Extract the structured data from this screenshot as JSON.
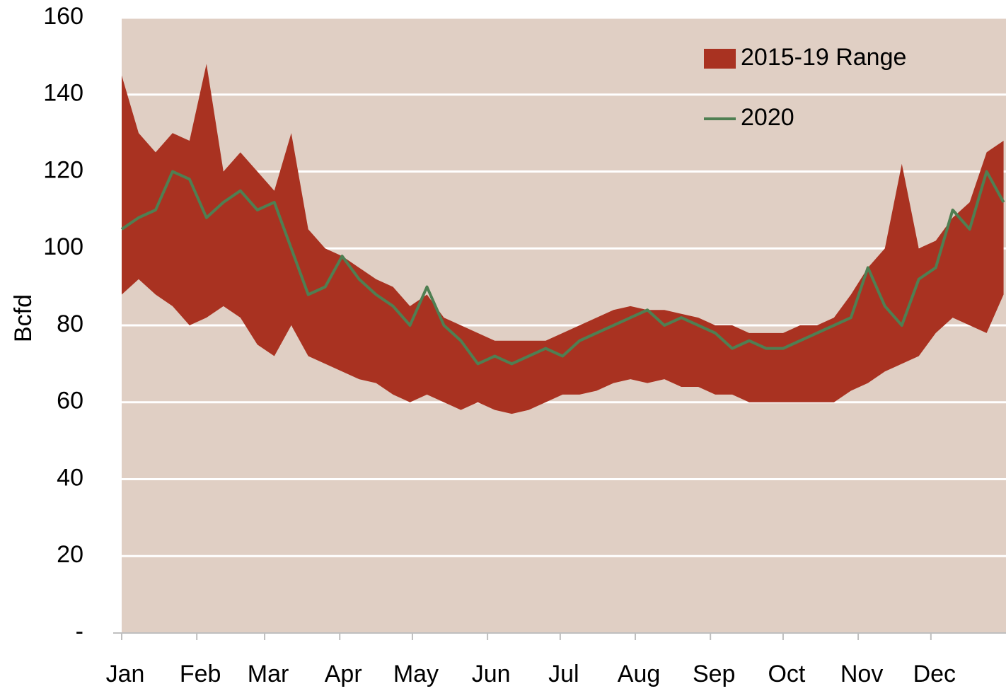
{
  "chart_data": {
    "type": "line",
    "y_label": "Bcfd",
    "xlim": [
      1,
      366
    ],
    "xticks": [
      {
        "value": 1,
        "label": "Jan"
      },
      {
        "value": 32,
        "label": "Feb"
      },
      {
        "value": 60,
        "label": "Mar"
      },
      {
        "value": 91,
        "label": "Apr"
      },
      {
        "value": 121,
        "label": "May"
      },
      {
        "value": 152,
        "label": "Jun"
      },
      {
        "value": 182,
        "label": "Jul"
      },
      {
        "value": 213,
        "label": "Aug"
      },
      {
        "value": 244,
        "label": "Sep"
      },
      {
        "value": 274,
        "label": "Oct"
      },
      {
        "value": 305,
        "label": "Nov"
      },
      {
        "value": 335,
        "label": "Dec"
      }
    ],
    "ylim": [
      0,
      160
    ],
    "yticks": [
      {
        "value": 0,
        "label": "-"
      },
      20,
      40,
      60,
      80,
      100,
      120,
      140,
      160
    ],
    "grid": true,
    "background": "#e0cfc4",
    "legend": "top-right",
    "x": [
      1,
      8,
      15,
      22,
      29,
      36,
      43,
      50,
      57,
      64,
      71,
      78,
      85,
      92,
      99,
      106,
      113,
      120,
      127,
      134,
      141,
      148,
      155,
      162,
      169,
      176,
      183,
      190,
      197,
      204,
      211,
      218,
      225,
      232,
      239,
      246,
      253,
      260,
      267,
      274,
      281,
      288,
      295,
      302,
      309,
      316,
      323,
      330,
      337,
      344,
      351,
      358,
      365
    ],
    "series": [
      {
        "name": "2015-19 Range",
        "kind": "range",
        "color": "#a93221",
        "low": [
          88,
          92,
          88,
          85,
          80,
          82,
          85,
          82,
          75,
          72,
          80,
          72,
          70,
          68,
          66,
          65,
          62,
          60,
          62,
          60,
          58,
          60,
          58,
          57,
          58,
          60,
          62,
          62,
          63,
          65,
          66,
          65,
          66,
          64,
          64,
          62,
          62,
          60,
          60,
          60,
          60,
          60,
          60,
          63,
          65,
          68,
          70,
          72,
          78,
          82,
          80,
          78,
          88
        ],
        "high": [
          145,
          130,
          125,
          130,
          128,
          148,
          120,
          125,
          120,
          115,
          130,
          105,
          100,
          98,
          95,
          92,
          90,
          85,
          88,
          82,
          80,
          78,
          76,
          76,
          76,
          76,
          78,
          80,
          82,
          84,
          85,
          84,
          84,
          83,
          82,
          80,
          80,
          78,
          78,
          78,
          80,
          80,
          82,
          88,
          95,
          100,
          122,
          100,
          102,
          108,
          112,
          125,
          128
        ]
      },
      {
        "name": "2020",
        "kind": "line",
        "color": "#4f7f52",
        "values": [
          105,
          108,
          110,
          120,
          118,
          108,
          112,
          115,
          110,
          112,
          100,
          88,
          90,
          98,
          92,
          88,
          85,
          80,
          90,
          80,
          76,
          70,
          72,
          70,
          72,
          74,
          72,
          76,
          78,
          80,
          82,
          84,
          80,
          82,
          80,
          78,
          74,
          76,
          74,
          74,
          76,
          78,
          80,
          82,
          95,
          85,
          80,
          92,
          95,
          110,
          105,
          120,
          112
        ]
      }
    ]
  }
}
